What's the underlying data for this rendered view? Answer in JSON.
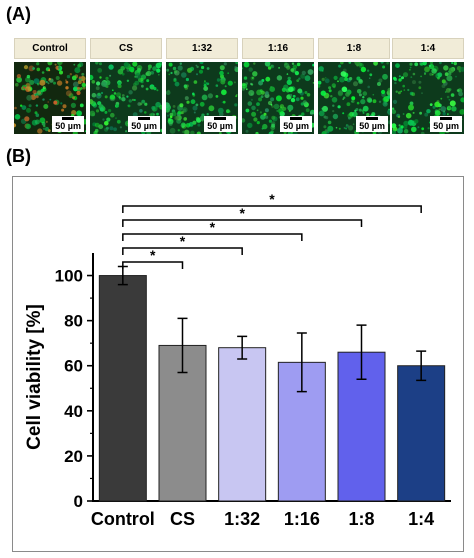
{
  "panel_a": {
    "label": "(A)",
    "tiles": [
      {
        "label": "Control",
        "scale": "50 µm"
      },
      {
        "label": "CS",
        "scale": "50 µm"
      },
      {
        "label": "1:32",
        "scale": "50 µm"
      },
      {
        "label": "1:16",
        "scale": "50 µm"
      },
      {
        "label": "1:8",
        "scale": "50 µm"
      },
      {
        "label": "1:4",
        "scale": "50 µm"
      }
    ]
  },
  "panel_b": {
    "label": "(B)"
  },
  "chart_data": {
    "type": "bar",
    "categories": [
      "Control",
      "CS",
      "1:32",
      "1:16",
      "1:8",
      "1:4"
    ],
    "values": [
      100,
      69,
      68,
      61.5,
      66,
      60
    ],
    "errors": [
      4,
      12,
      5,
      13,
      12,
      6.5
    ],
    "colors": [
      "#3a3a3a",
      "#8c8c8c",
      "#c8c6f2",
      "#9e9cf2",
      "#6161ec",
      "#1c3f86"
    ],
    "ylabel": "Cell viability [%]",
    "ylim": [
      0,
      110
    ],
    "yticks": [
      0,
      20,
      40,
      60,
      80,
      100
    ],
    "significance": [
      {
        "from": "Control",
        "to": "CS",
        "label": "*"
      },
      {
        "from": "Control",
        "to": "1:32",
        "label": "*"
      },
      {
        "from": "Control",
        "to": "1:16",
        "label": "*"
      },
      {
        "from": "Control",
        "to": "1:8",
        "label": "*"
      },
      {
        "from": "Control",
        "to": "1:4",
        "label": "*"
      }
    ]
  }
}
